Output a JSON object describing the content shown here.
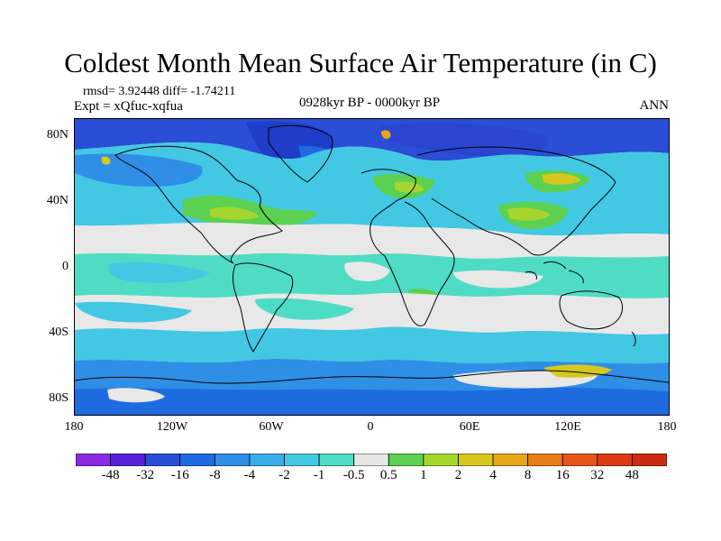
{
  "title": "Coldest Month Mean Surface Air Temperature (in C)",
  "stats": "rmsd= 3.92448 diff= -1.74211",
  "experiment": "Expt = xQfuc-xqfua",
  "period": "0928kyr BP - 0000kyr BP",
  "season": "ANN",
  "map": {
    "projection": "cylindrical equidistant",
    "lat_labels": [
      "80N",
      "40N",
      "0",
      "40S",
      "80S"
    ],
    "lon_labels": [
      "180",
      "120W",
      "60W",
      "0",
      "60E",
      "120E",
      "180"
    ]
  },
  "colorbar": {
    "labels": [
      "-48",
      "-32",
      "-16",
      "-8",
      "-4",
      "-2",
      "-1",
      "-0.5",
      "0.5",
      "1",
      "2",
      "4",
      "8",
      "16",
      "32",
      "48"
    ],
    "colors": [
      "#8a2be2",
      "#5522d8",
      "#2a4ed6",
      "#1e6be0",
      "#2f8ee6",
      "#3aaee8",
      "#43c8e4",
      "#4fdcc4",
      "#e6e6e6",
      "#5cd050",
      "#a6d62e",
      "#d6c81e",
      "#e6a618",
      "#e87e16",
      "#e6561a",
      "#dc3a14",
      "#cc2a10"
    ]
  }
}
